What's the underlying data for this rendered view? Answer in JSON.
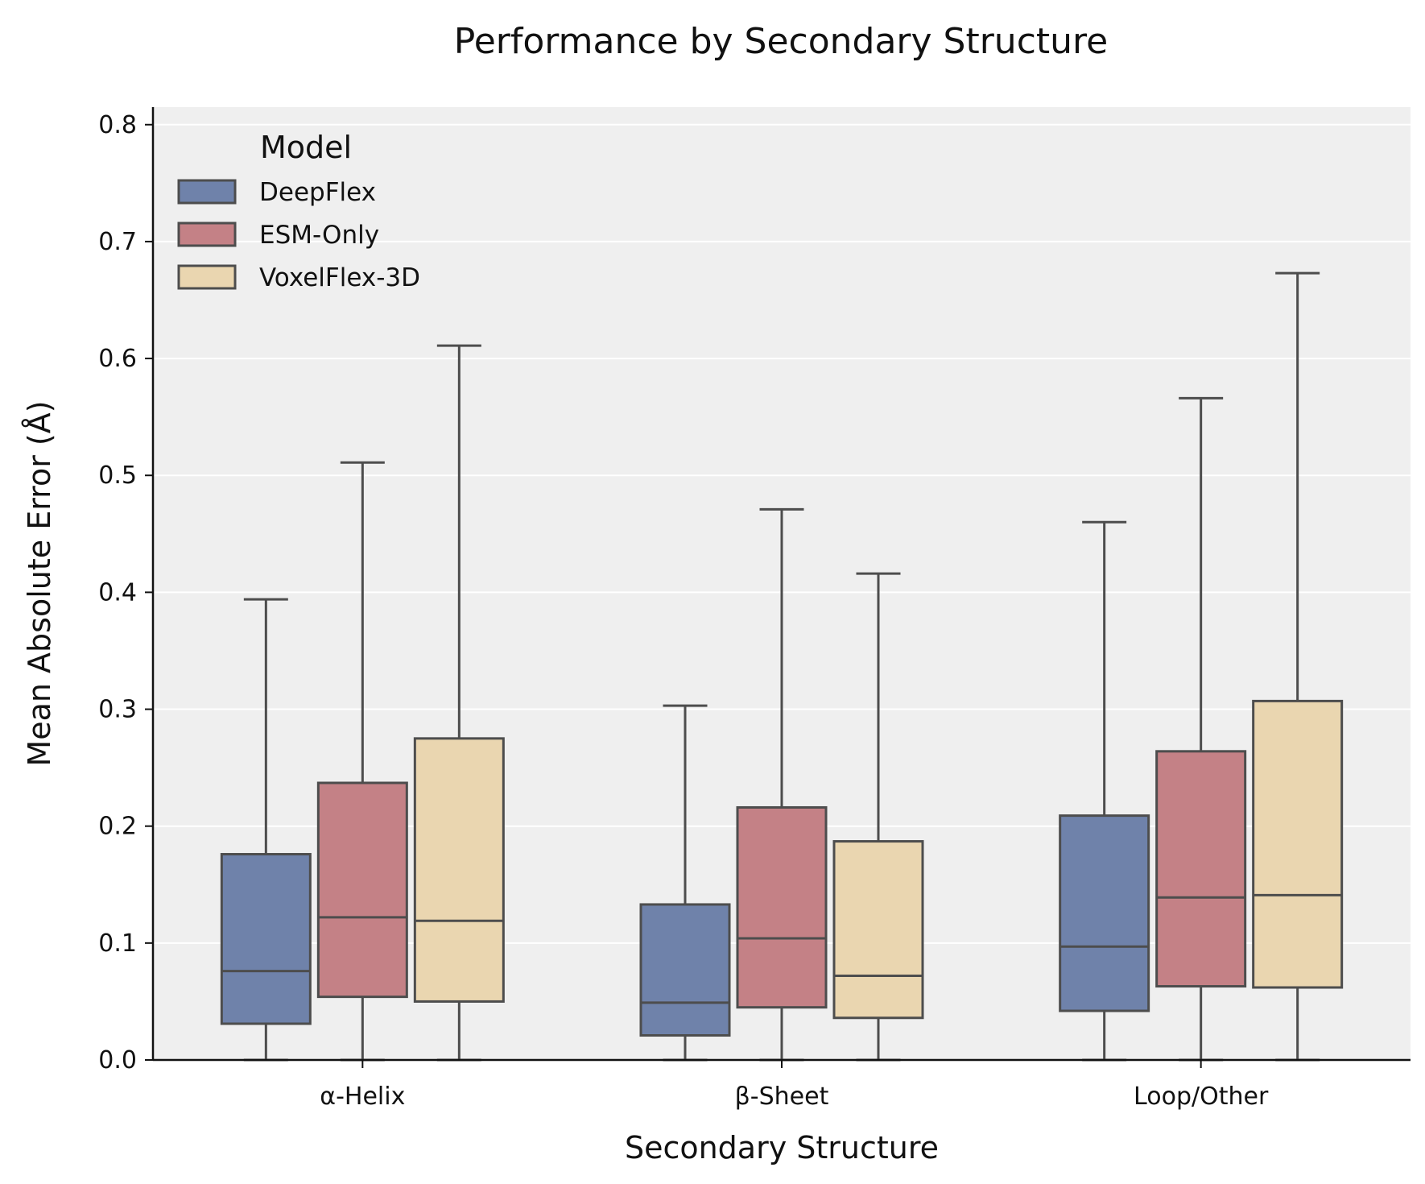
{
  "chart_data": {
    "type": "boxplot",
    "title": "Performance by Secondary Structure",
    "xlabel": "Secondary Structure",
    "ylabel": "Mean Absolute Error (Å)",
    "ylim": [
      0,
      0.815
    ],
    "yticks": [
      "0.0",
      "0.1",
      "0.2",
      "0.3",
      "0.4",
      "0.5",
      "0.6",
      "0.7",
      "0.8"
    ],
    "grid": true,
    "legend": {
      "title": "Model",
      "placement": "top-left"
    },
    "categories": [
      "α-Helix",
      "β-Sheet",
      "Loop/Other"
    ],
    "series": [
      {
        "name": "DeepFlex",
        "color": "#6f82aa",
        "boxes": [
          {
            "whisker_low": 0.0,
            "q1": 0.031,
            "median": 0.076,
            "q3": 0.176,
            "whisker_high": 0.394
          },
          {
            "whisker_low": 0.0,
            "q1": 0.021,
            "median": 0.049,
            "q3": 0.133,
            "whisker_high": 0.303
          },
          {
            "whisker_low": 0.0,
            "q1": 0.042,
            "median": 0.097,
            "q3": 0.209,
            "whisker_high": 0.46
          }
        ]
      },
      {
        "name": "ESM-Only",
        "color": "#c48186",
        "boxes": [
          {
            "whisker_low": 0.0,
            "q1": 0.054,
            "median": 0.122,
            "q3": 0.237,
            "whisker_high": 0.511
          },
          {
            "whisker_low": 0.0,
            "q1": 0.045,
            "median": 0.104,
            "q3": 0.216,
            "whisker_high": 0.471
          },
          {
            "whisker_low": 0.0,
            "q1": 0.063,
            "median": 0.139,
            "q3": 0.264,
            "whisker_high": 0.566
          }
        ]
      },
      {
        "name": "VoxelFlex-3D",
        "color": "#ead6b0",
        "boxes": [
          {
            "whisker_low": 0.0,
            "q1": 0.05,
            "median": 0.119,
            "q3": 0.275,
            "whisker_high": 0.611
          },
          {
            "whisker_low": 0.0,
            "q1": 0.036,
            "median": 0.072,
            "q3": 0.187,
            "whisker_high": 0.416
          },
          {
            "whisker_low": 0.0,
            "q1": 0.062,
            "median": 0.141,
            "q3": 0.307,
            "whisker_high": 0.673
          }
        ]
      }
    ]
  }
}
